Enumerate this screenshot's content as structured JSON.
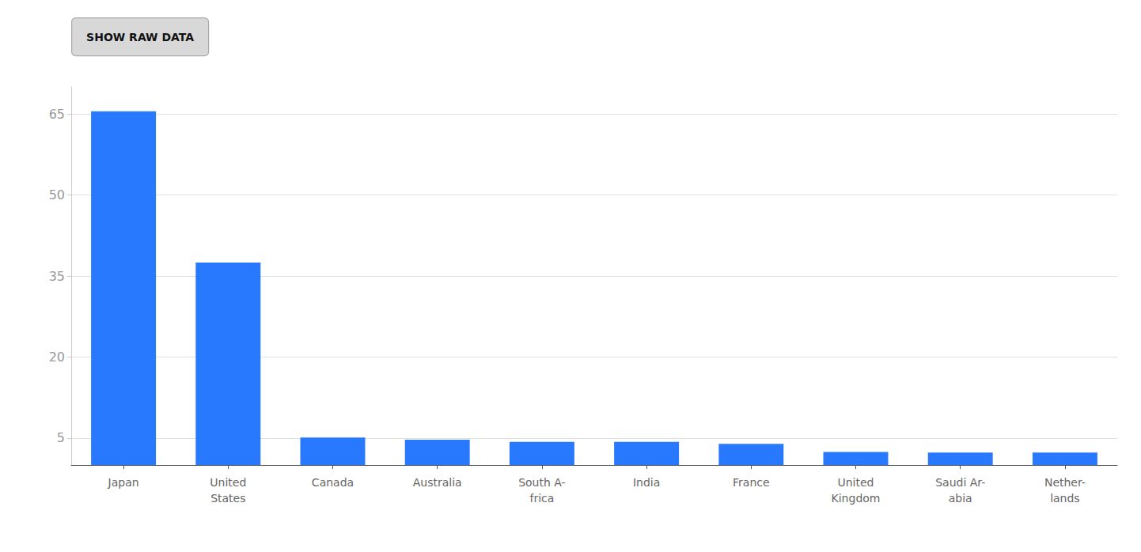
{
  "chart_data": {
    "type": "bar",
    "categories": [
      "Japan",
      "United\nStates",
      "Canada",
      "Australia",
      "South A-\nfrica",
      "India",
      "France",
      "United\nKingdom",
      "Saudi Ar-\nabia",
      "Nether-\nlands"
    ],
    "values": [
      65.5,
      37.5,
      5.1,
      4.7,
      4.3,
      4.3,
      3.9,
      2.4,
      2.3,
      2.3
    ],
    "color": "#2979FF",
    "ylim": [
      0,
      70
    ],
    "yticks": [
      5,
      20,
      35,
      50,
      65
    ],
    "grid": true,
    "annotations": [
      "SHOW RAW DATA"
    ]
  }
}
